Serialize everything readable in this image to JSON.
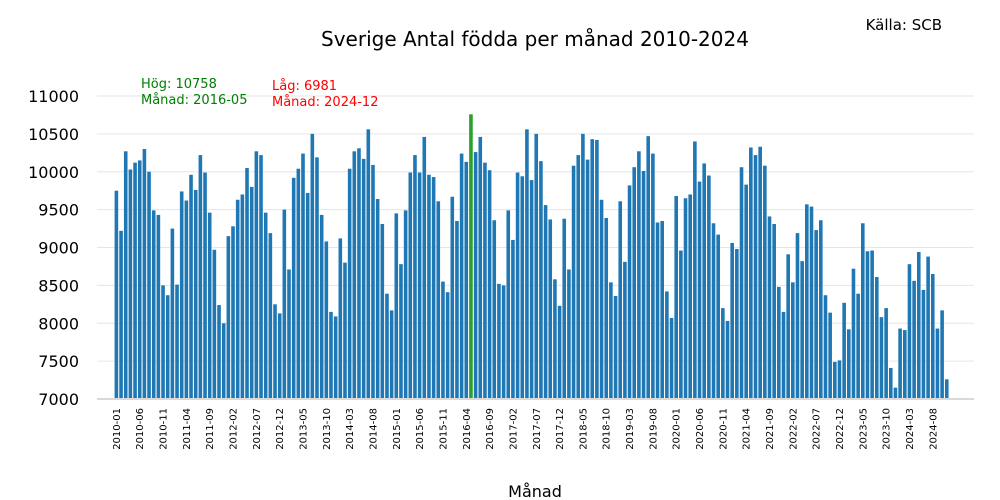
{
  "chart_data": {
    "type": "bar",
    "title": "Sverige Antal födda per månad 2010-2024",
    "source": "Källa: SCB",
    "xlabel": "Månad",
    "ylabel": "",
    "ylim": [
      7000,
      11000
    ],
    "yticks": [
      7000,
      7500,
      8000,
      8500,
      9000,
      9500,
      10000,
      10500,
      11000
    ],
    "grid": "horizontal",
    "colors": {
      "bar": "#1f77b4",
      "highlight": "#2ca02c",
      "high_text": "#008000",
      "low_text": "#ff0000"
    },
    "start": {
      "year": 2010,
      "month": 1
    },
    "tick_labels": [
      "2010-01",
      "2010-06",
      "2010-11",
      "2011-04",
      "2011-09",
      "2012-02",
      "2012-07",
      "2012-12",
      "2013-05",
      "2013-10",
      "2014-03",
      "2014-08",
      "2015-01",
      "2015-06",
      "2015-11",
      "2016-04",
      "2016-09",
      "2017-02",
      "2017-07",
      "2017-12",
      "2018-05",
      "2018-10",
      "2019-03",
      "2019-08",
      "2020-01",
      "2020-06",
      "2020-11",
      "2021-04",
      "2021-09",
      "2022-02",
      "2022-07",
      "2022-12",
      "2023-05",
      "2023-10",
      "2024-03",
      "2024-08"
    ],
    "tick_every": 5,
    "highlight_index": 76,
    "annotations": {
      "high": {
        "line1": "Hög: 10758",
        "line2": "Månad: 2016-05"
      },
      "low": {
        "line1": "Låg: 6981",
        "line2": "Månad: 2024-12"
      }
    },
    "values": [
      9750,
      9220,
      10270,
      10030,
      10120,
      10150,
      10300,
      10000,
      9490,
      9430,
      8500,
      8370,
      9250,
      8510,
      9740,
      9620,
      9960,
      9760,
      10220,
      9990,
      9460,
      8970,
      8240,
      8000,
      9150,
      9280,
      9630,
      9700,
      10050,
      9800,
      10270,
      10220,
      9460,
      9190,
      8250,
      8130,
      9500,
      8710,
      9920,
      10040,
      10240,
      9720,
      10500,
      10190,
      9430,
      9080,
      8150,
      8090,
      9120,
      8800,
      10040,
      10270,
      10310,
      10170,
      10560,
      10090,
      9640,
      9310,
      8390,
      8170,
      9450,
      8780,
      9490,
      9990,
      10220,
      9990,
      10460,
      9960,
      9930,
      9610,
      8550,
      8410,
      9670,
      9350,
      10240,
      10130,
      10758,
      10260,
      10460,
      10120,
      10020,
      9360,
      8520,
      8500,
      9490,
      9100,
      9990,
      9940,
      10560,
      9890,
      10500,
      10140,
      9560,
      9370,
      8580,
      8230,
      9380,
      8710,
      10080,
      10220,
      10500,
      10160,
      10430,
      10420,
      9630,
      9390,
      8540,
      8360,
      9610,
      8810,
      9820,
      10060,
      10270,
      10010,
      10470,
      10240,
      9330,
      9350,
      8420,
      8070,
      9680,
      8960,
      9650,
      9700,
      10400,
      9870,
      10110,
      9950,
      9320,
      9170,
      8200,
      8030,
      9060,
      8980,
      10060,
      9830,
      10320,
      10220,
      10330,
      10080,
      9410,
      9310,
      8480,
      8150,
      8910,
      8540,
      9190,
      8820,
      9570,
      9540,
      9230,
      9360,
      8370,
      8140,
      7490,
      7510,
      8270,
      7920,
      8720,
      8390,
      9320,
      8950,
      8960,
      8610,
      8080,
      8200,
      7410,
      7150,
      7930,
      7910,
      8780,
      8560,
      8940,
      8440,
      8880,
      8650,
      7930,
      8170,
      7260,
      6981
    ]
  }
}
